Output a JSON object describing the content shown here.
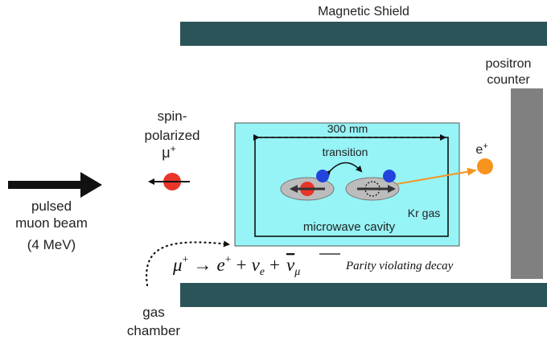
{
  "labels": {
    "magnetic_shield": "Magnetic Shield",
    "positron_counter_line1": "positron",
    "positron_counter_line2": "counter",
    "spin_polarized_line1": "spin-",
    "spin_polarized_line2": "polarized",
    "muon_symbol": "μ",
    "muon_charge": "+",
    "beam_line1": "pulsed",
    "beam_line2": "muon beam",
    "beam_energy": "(4 MeV)",
    "cavity_length": "300 mm",
    "transition": "transition",
    "kr_gas": "Kr gas",
    "microwave_cavity": "microwave cavity",
    "positron_symbol": "e",
    "positron_charge": "+",
    "gas_chamber_line1": "gas",
    "gas_chamber_line2": "chamber"
  },
  "equation": {
    "mu": "μ",
    "mu_sup": "+",
    "arrow": "→",
    "e": "e",
    "e_sup": "+",
    "plus1": "+",
    "nu_e": "ν",
    "nu_e_sub": "e",
    "plus2": "+",
    "nu_mu_bar": "ν",
    "nu_mu_bar_sub": "μ",
    "note": "Parity violating decay"
  },
  "colors": {
    "shield": "#2b5458",
    "cavity_fill": "#96f3f6",
    "counter": "#808080",
    "muon": "#e8352a",
    "electron": "#2244dd",
    "positron": "#f7941d",
    "ellipse_fill": "#bcbcbc"
  }
}
